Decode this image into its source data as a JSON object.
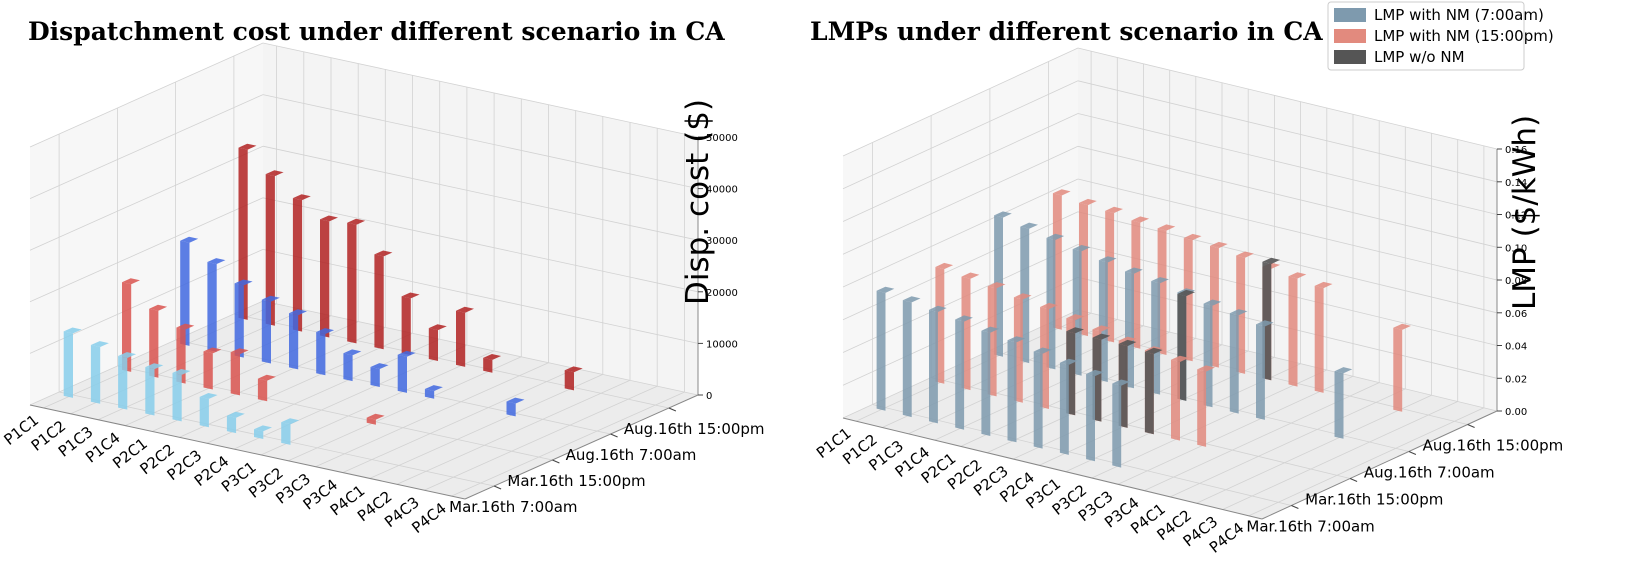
{
  "chart_data": [
    {
      "type": "bar3d",
      "title": "Dispatchment cost under different scenario in CA",
      "categories": [
        "P1C1",
        "P1C2",
        "P1C3",
        "P1C4",
        "P2C1",
        "P2C2",
        "P2C3",
        "P2C4",
        "P3C1",
        "P3C2",
        "P3C3",
        "P3C4",
        "P4C1",
        "P4C2",
        "P4C3",
        "P4C4"
      ],
      "scenarios": [
        "Mar.16th 7:00am",
        "Mar.16th 15:00pm",
        "Aug.16th 7:00am",
        "Aug.16th 15:00pm"
      ],
      "zlabel": "Disp. cost ($)",
      "zlim": [
        0,
        50000
      ],
      "zticks": [
        "0",
        "10000",
        "20000",
        "30000",
        "40000",
        "50000"
      ],
      "series": [
        {
          "name": "Mar.16th 7:00am",
          "color": "#87CEEB",
          "values": [
            12500,
            11000,
            10000,
            9000,
            9000,
            5500,
            3000,
            1500,
            4000,
            null,
            null,
            null,
            null,
            null,
            null,
            null
          ]
        },
        {
          "name": "Mar.16th 15:00pm",
          "color": "#D9534F",
          "values": [
            17000,
            13000,
            10500,
            7000,
            8000,
            4000,
            null,
            null,
            null,
            1000,
            null,
            null,
            null,
            null,
            null,
            null
          ]
        },
        {
          "name": "Aug.16th 7:00am",
          "color": "#4169E1",
          "values": [
            20000,
            17000,
            14000,
            12000,
            10500,
            8000,
            5000,
            3500,
            7000,
            1500,
            null,
            null,
            2500,
            null,
            null,
            null
          ]
        },
        {
          "name": "Aug.16th 15:00pm",
          "color": "#B22222",
          "values": [
            33000,
            29000,
            25500,
            22500,
            23000,
            18000,
            11000,
            6000,
            10500,
            2500,
            null,
            null,
            3500,
            null,
            null,
            null
          ]
        }
      ]
    },
    {
      "type": "bar3d",
      "title": "LMPs under different scenario in CA",
      "categories": [
        "P1C1",
        "P1C2",
        "P1C3",
        "P1C4",
        "P2C1",
        "P2C2",
        "P2C3",
        "P2C4",
        "P3C1",
        "P3C2",
        "P3C3",
        "P3C4",
        "P4C1",
        "P4C2",
        "P4C3",
        "P4C4"
      ],
      "scenarios": [
        "Mar.16th 7:00am",
        "Mar.16th 15:00pm",
        "Aug.16th 7:00am",
        "Aug.16th 15:00pm"
      ],
      "zlabel": "LMP ($/kWh)",
      "zlim": [
        0,
        0.16
      ],
      "zticks": [
        "0.00",
        "0.02",
        "0.04",
        "0.06",
        "0.08",
        "0.10",
        "0.12",
        "0.14",
        "0.16"
      ],
      "legend": {
        "placement": "top-right",
        "entries": [
          {
            "label": "LMP with NM (7:00am)",
            "color": "#7E9AAE"
          },
          {
            "label": "LMP with NM (15:00pm)",
            "color": "#E28A7E"
          },
          {
            "label": "LMP w/o NM",
            "color": "#555555"
          }
        ]
      },
      "series": [
        {
          "name": "Mar.16th 7:00am",
          "color": "#7E9AAE",
          "values": [
            0.072,
            0.07,
            0.068,
            0.066,
            0.063,
            0.061,
            0.058,
            0.055,
            0.052,
            0.05,
            null,
            null,
            null,
            null,
            null,
            null
          ]
        },
        {
          "name": "Mar.16th 15:00pm",
          "color": "#E28A7E",
          "values": [
            0.07,
            0.068,
            0.066,
            0.063,
            0.061,
            0.058,
            0.055,
            0.052,
            0.05,
            0.048,
            0.046,
            null,
            null,
            null,
            null,
            null
          ],
          "overlay": [
            null,
            null,
            null,
            null,
            null,
            0.05,
            0.05,
            0.05,
            0.049,
            null,
            null,
            null,
            null,
            null,
            null,
            null
          ]
        },
        {
          "name": "Aug.16th 7:00am",
          "color": "#7E9AAE",
          "values": [
            0.085,
            0.082,
            0.079,
            0.076,
            0.073,
            0.07,
            0.068,
            0.065,
            0.062,
            0.06,
            0.057,
            null,
            null,
            0.04,
            null,
            null
          ],
          "overlay": [
            null,
            null,
            null,
            null,
            null,
            null,
            null,
            0.064,
            null,
            null,
            null,
            null,
            null,
            null,
            null,
            null
          ]
        },
        {
          "name": "Aug.16th 15:00pm",
          "color": "#E28A7E",
          "values": [
            0.082,
            0.08,
            0.079,
            0.077,
            0.076,
            0.074,
            0.073,
            0.071,
            0.068,
            0.066,
            0.064,
            null,
            null,
            0.05,
            null,
            null
          ],
          "overlay": [
            null,
            null,
            null,
            null,
            null,
            null,
            null,
            null,
            0.071,
            null,
            null,
            null,
            null,
            null,
            null,
            null
          ]
        }
      ]
    }
  ]
}
